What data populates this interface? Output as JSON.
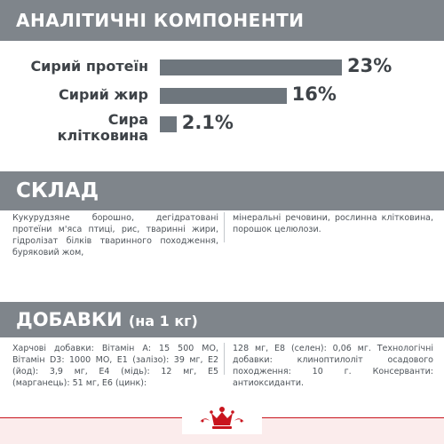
{
  "analytics": {
    "title": "АНАЛІТИЧНІ КОМПОНЕНТИ",
    "rows": [
      {
        "label_lines": [
          "Сирий протеїн"
        ],
        "value_text": "23%",
        "value": 23
      },
      {
        "label_lines": [
          "Сирий жир"
        ],
        "value_text": "16%",
        "value": 16
      },
      {
        "label_lines": [
          "Сира",
          "клітковина"
        ],
        "value_text": "2.1%",
        "value": 2.1
      }
    ]
  },
  "composition": {
    "title": "СКЛАД",
    "left_text": "Кукурудзяне борошно, дегідратовані протеїни м'яса птиці, рис, тваринні жири, гідролізат білків тваринного походження, буряковий жом,",
    "right_text": "мінеральні речовини, рослинна клітковина, порошок целюлози."
  },
  "additives": {
    "title": "ДОБАВКИ",
    "subtitle": "(на 1 кг)",
    "left_text": "Харчові добавки: Вітамін А: 15 500 МО, Вітамін D3: 1000 МО, Е1 (залізо): 39 мг, Е2 (йод): 3,9 мг, Е4 (мідь): 12 мг, Е5 (марганець): 51 мг, Е6 (цинк):",
    "right_text": "128 мг, Е8 (селен): 0,06 мг. Технологічні добавки: клиноптилоліт осадового походження: 10 г. Консерванти: антиоксиданти."
  },
  "brand": {
    "logo": "royal-canin-crown-logo",
    "color": "#c9151e"
  },
  "colors": {
    "band": "#7f858b",
    "bar": "#6e767d",
    "text_dark": "#3e4348"
  }
}
